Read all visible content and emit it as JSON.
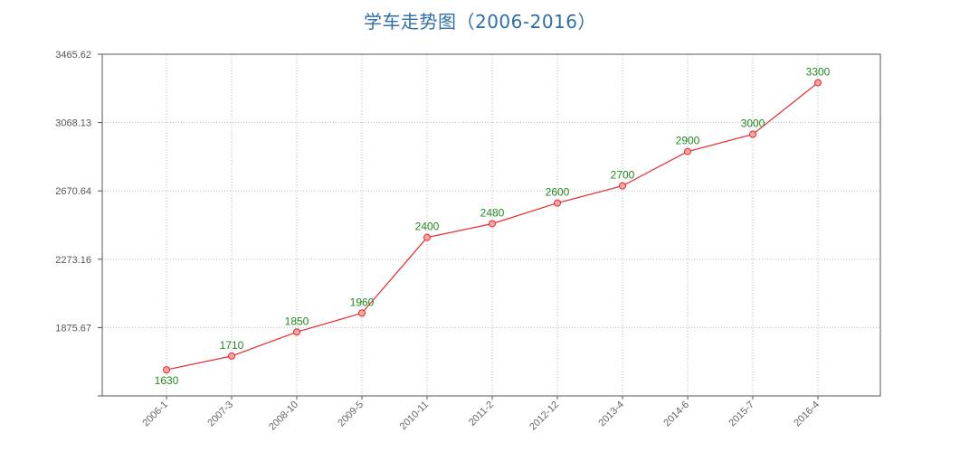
{
  "chart_data": {
    "type": "line",
    "title": "学车走势图（2006-2016）",
    "xlabel": "",
    "ylabel": "",
    "categories": [
      "2006-1",
      "2007-3",
      "2008-10",
      "2009-5",
      "2010-11",
      "2011-2",
      "2012-12",
      "2013-4",
      "2014-6",
      "2015-7",
      "2016-4"
    ],
    "series": [
      {
        "values": [
          1630,
          1710,
          1850,
          1960,
          2400,
          2480,
          2600,
          2700,
          2900,
          3000,
          3300
        ]
      }
    ],
    "ylim": [
      1478.19,
      3465.62
    ],
    "yticks": [
      3465.62,
      3068.13,
      2670.64,
      2273.16,
      1875.67
    ],
    "grid": true,
    "grid_style": "dotted",
    "legend": "none",
    "colors": {
      "line": "#e8272b",
      "marker_fill": "#f7a6a8",
      "data_label": "#1f8a1f",
      "title": "#2f6ea8",
      "grid": "#bbbbbb",
      "axis": "#555555"
    }
  }
}
